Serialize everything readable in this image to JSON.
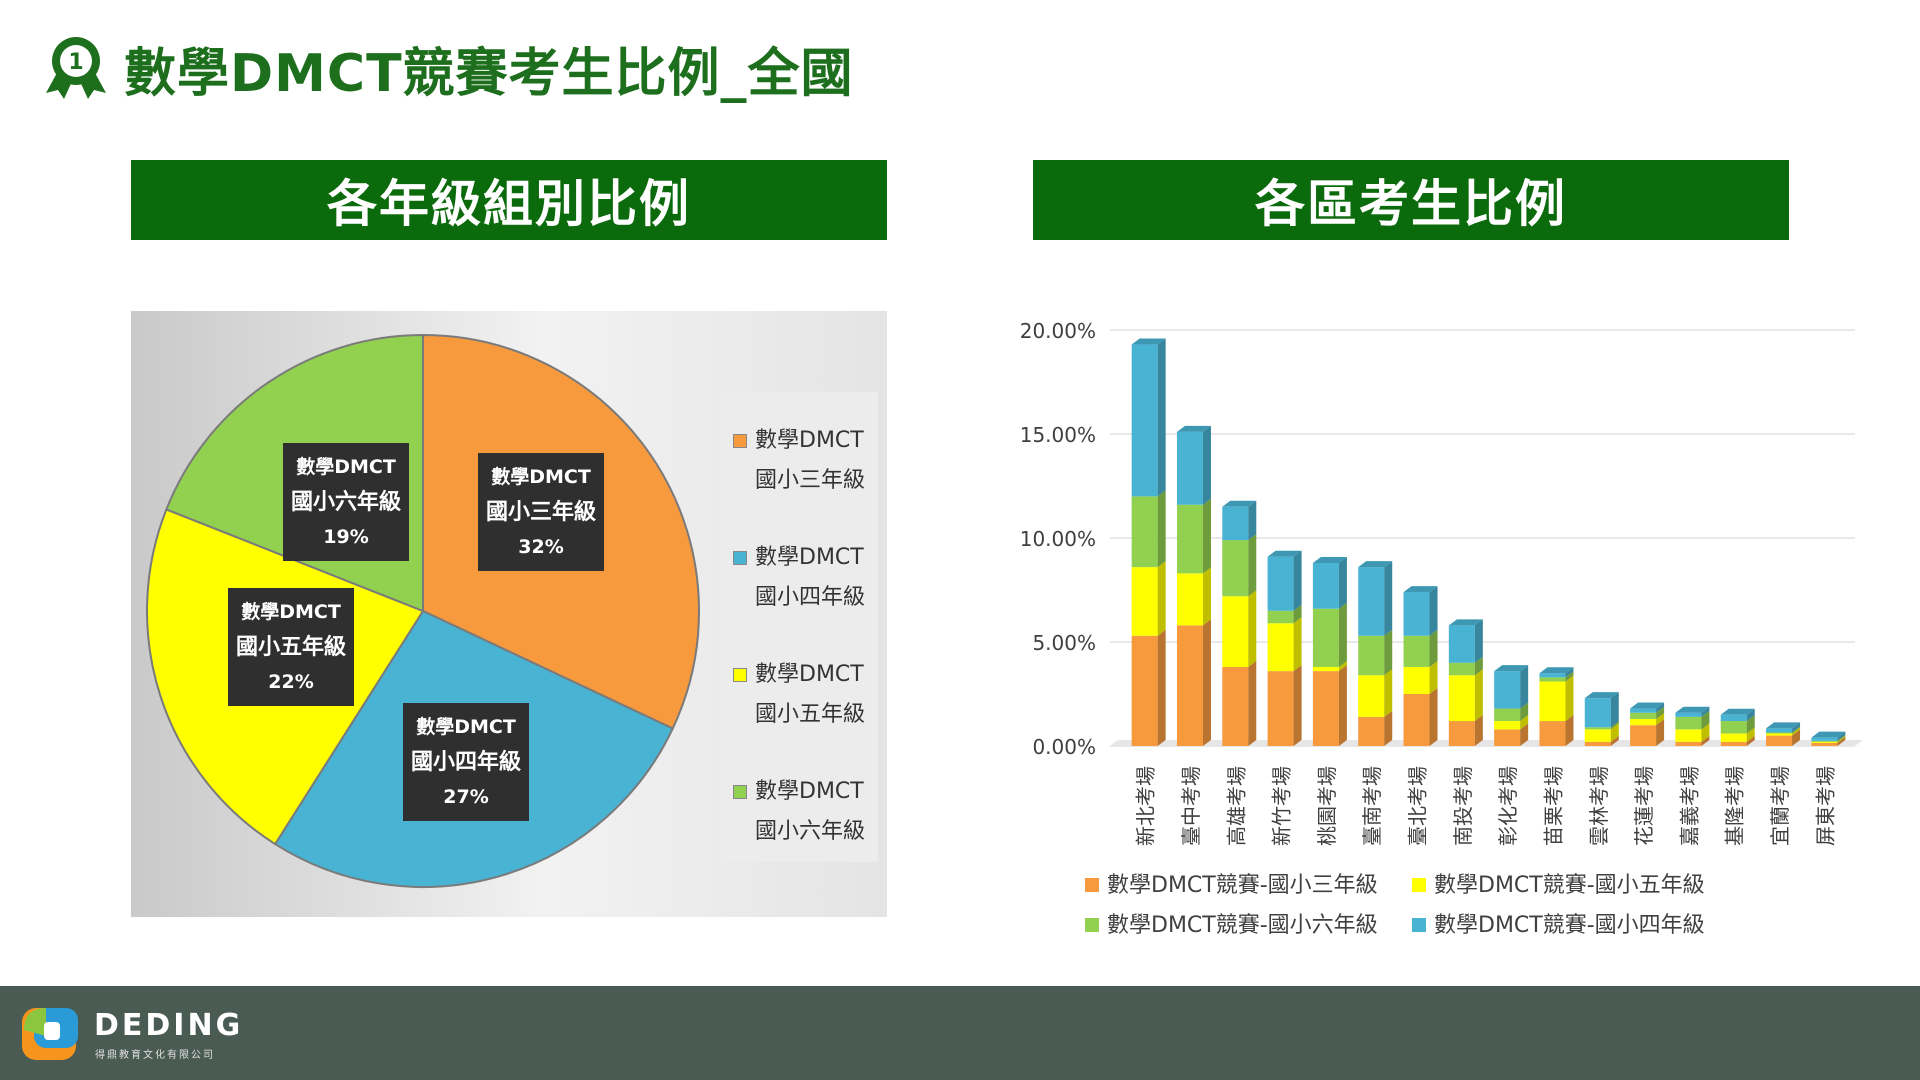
{
  "header": {
    "badge_number": "1",
    "title": "數學DMCT競賽考生比例_全國"
  },
  "left_section": {
    "title": "各年級組別比例"
  },
  "right_section": {
    "title": "各區考生比例"
  },
  "colors": {
    "grade3": "#f79a3e",
    "grade4": "#49b3d3",
    "grade5": "#ffff00",
    "grade6": "#92d050",
    "section_bar": "#0b6a0b",
    "title_green": "#1d6e1d",
    "footer": "#4a5b53"
  },
  "chart_data": [
    {
      "type": "pie",
      "slices": [
        {
          "label_line1": "數學DMCT",
          "label_line2": "國小三年級",
          "value": 32,
          "percent_label": "32%",
          "color": "#f79a3e"
        },
        {
          "label_line1": "數學DMCT",
          "label_line2": "國小四年級",
          "value": 27,
          "percent_label": "27%",
          "color": "#49b3d3"
        },
        {
          "label_line1": "數學DMCT",
          "label_line2": "國小五年級",
          "value": 22,
          "percent_label": "22%",
          "color": "#ffff00"
        },
        {
          "label_line1": "數學DMCT",
          "label_line2": "國小六年級",
          "value": 19,
          "percent_label": "19%",
          "color": "#92d050"
        }
      ],
      "legend": [
        {
          "line1": "數學DMCT",
          "line2": "國小三年級",
          "color": "#f79a3e"
        },
        {
          "line1": "數學DMCT",
          "line2": "國小四年級",
          "color": "#49b3d3"
        },
        {
          "line1": "數學DMCT",
          "line2": "國小五年級",
          "color": "#ffff00"
        },
        {
          "line1": "數學DMCT",
          "line2": "國小六年級",
          "color": "#92d050"
        }
      ],
      "legend_placement": "right"
    },
    {
      "type": "bar",
      "stacked": true,
      "categories": [
        "新北考場",
        "臺中考場",
        "高雄考場",
        "新竹考場",
        "桃園考場",
        "臺南考場",
        "臺北考場",
        "南投考場",
        "彰化考場",
        "苗栗考場",
        "雲林考場",
        "花蓮考場",
        "嘉義考場",
        "基隆考場",
        "宜蘭考場",
        "屏東考場"
      ],
      "series": [
        {
          "name": "數學DMCT競賽-國小三年級",
          "color": "#f79a3e",
          "values": [
            5.3,
            5.8,
            3.8,
            3.6,
            3.6,
            1.4,
            2.5,
            1.2,
            0.8,
            1.2,
            0.2,
            1.0,
            0.2,
            0.2,
            0.5,
            0.15
          ]
        },
        {
          "name": "數學DMCT競賽-國小五年級",
          "color": "#ffff00",
          "values": [
            3.3,
            2.5,
            3.4,
            2.3,
            0.2,
            2.0,
            1.3,
            2.2,
            0.4,
            1.9,
            0.6,
            0.3,
            0.6,
            0.4,
            0.1,
            0.05
          ]
        },
        {
          "name": "數學DMCT競賽-國小六年級",
          "color": "#92d050",
          "values": [
            3.4,
            3.3,
            2.7,
            0.6,
            2.8,
            1.9,
            1.5,
            0.6,
            0.6,
            0.2,
            0.1,
            0.3,
            0.6,
            0.6,
            0.05,
            0.05
          ]
        },
        {
          "name": "數學DMCT競賽-國小四年級",
          "color": "#49b3d3",
          "values": [
            7.3,
            3.5,
            1.6,
            2.6,
            2.2,
            3.3,
            2.1,
            1.8,
            1.8,
            0.2,
            1.4,
            0.2,
            0.2,
            0.3,
            0.2,
            0.15
          ]
        }
      ],
      "y_ticks": [
        "0.00%",
        "5.00%",
        "10.00%",
        "15.00%",
        "20.00%"
      ],
      "ylim": [
        0,
        20
      ],
      "grid": true,
      "legend_placement": "bottom"
    }
  ],
  "footer": {
    "logo_text": "DEDING",
    "logo_subtext": "得鼎教育文化有限公司"
  }
}
